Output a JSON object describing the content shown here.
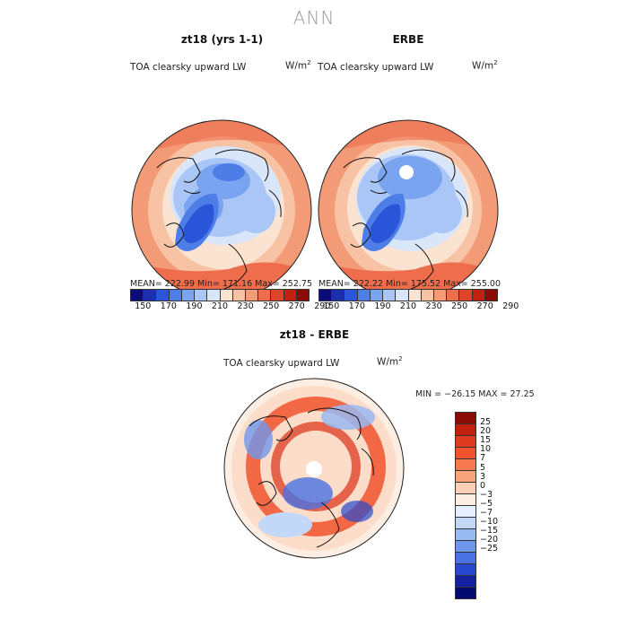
{
  "title": "ANN",
  "panels": [
    {
      "title": "zt18 (yrs 1-1)",
      "variable": "TOA clearsky upward LW",
      "units_base": "W/m",
      "units_exp": "2",
      "stats": "MEAN= 222.99  Min= 171.16  Max= 252.75"
    },
    {
      "title": "ERBE",
      "variable": "TOA clearsky upward LW",
      "units_base": "W/m",
      "units_exp": "2",
      "stats": "MEAN= 222.22  Min= 175.52  Max= 255.00"
    }
  ],
  "abs_colorbar": {
    "colors": [
      "#0b0b7a",
      "#1b2fb0",
      "#2a55d8",
      "#4d7ee8",
      "#7aa3f0",
      "#a9c6f6",
      "#d9e6f9",
      "#fbe3d2",
      "#f8c3a4",
      "#f59a76",
      "#ed6d4c",
      "#de4428",
      "#c2200f",
      "#8b0b06"
    ],
    "labels": [
      "150",
      "170",
      "190",
      "210",
      "230",
      "250",
      "270",
      "290"
    ]
  },
  "diff": {
    "title": "zt18 - ERBE",
    "variable": "TOA clearsky upward LW",
    "units_base": "W/m",
    "units_exp": "2",
    "stats": "MIN = −26.15  MAX =  27.25",
    "colors": [
      "#8b0b06",
      "#c2200f",
      "#de3a1f",
      "#f0532d",
      "#f57a4f",
      "#f8a57e",
      "#fbd0b7",
      "#fdeee3",
      "#e6efff",
      "#c3d7f9",
      "#99baf3",
      "#6e97ec",
      "#4a72e2",
      "#2748cf",
      "#12229f",
      "#050a6e"
    ],
    "labels": [
      "25",
      "20",
      "15",
      "10",
      "7",
      "5",
      "3",
      "0",
      "−3",
      "−5",
      "−7",
      "−10",
      "−15",
      "−20",
      "−25"
    ]
  }
}
